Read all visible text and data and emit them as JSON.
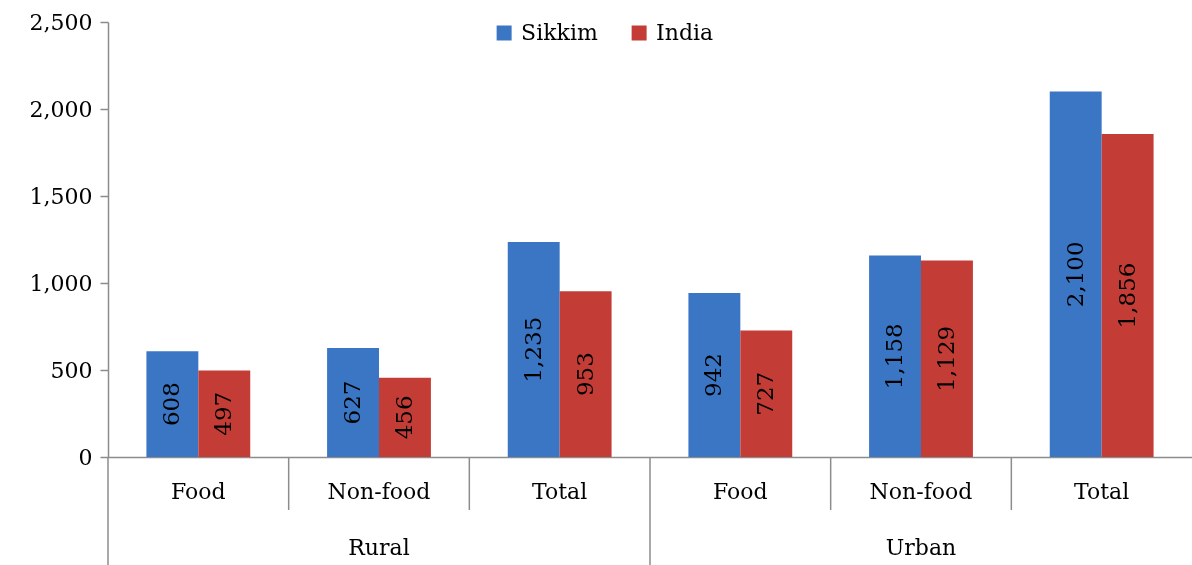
{
  "chart_data": {
    "type": "bar",
    "categories": [
      "Food",
      "Non-food",
      "Total",
      "Food",
      "Non-food",
      "Total"
    ],
    "series": [
      {
        "name": "Sikkim",
        "color": "#3a76c4",
        "values": [
          608,
          627,
          1235,
          942,
          1158,
          2100
        ],
        "value_labels": [
          "608",
          "627",
          "1,235",
          "942",
          "1,158",
          "2,100"
        ]
      },
      {
        "name": "India",
        "color": "#c43c36",
        "values": [
          497,
          456,
          953,
          727,
          1129,
          1856
        ],
        "value_labels": [
          "497",
          "456",
          "953",
          "727",
          "1,129",
          "1,856"
        ]
      }
    ],
    "annotations": [
      "Rural",
      "Urban"
    ],
    "ylim": [
      0,
      2500
    ],
    "yticks": [
      0,
      500,
      {
        "value": 1000,
        "label": "1,000"
      },
      {
        "value": 1500,
        "label": "1,500"
      },
      {
        "value": 2000,
        "label": "2,000"
      },
      {
        "value": 2500,
        "label": "2,500"
      }
    ],
    "legend": "top",
    "grid": false
  }
}
